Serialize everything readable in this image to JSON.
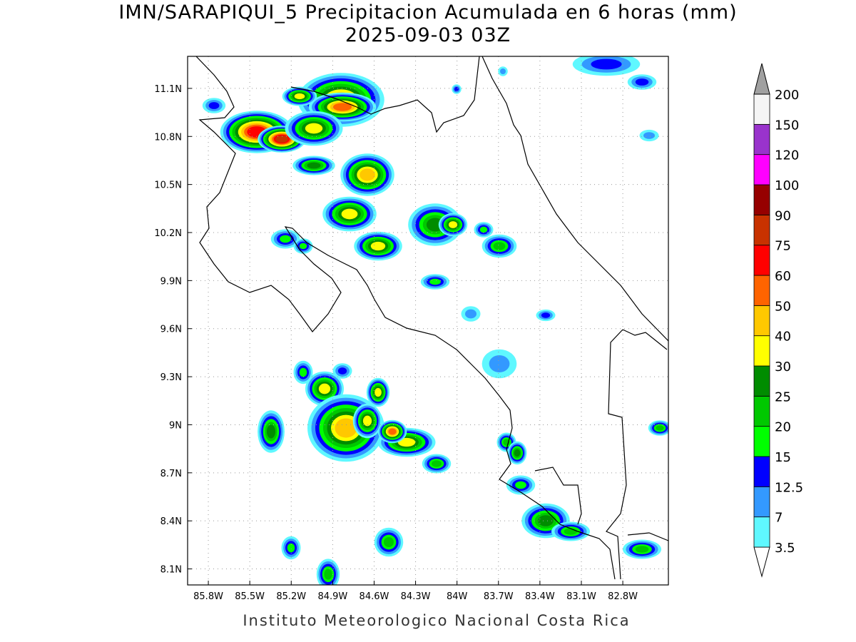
{
  "title": "IMN/SARAPIQUI_5 Precipitacion Acumulada en 6 horas (mm)",
  "subtitle": "2025-09-03 03Z",
  "footer": "Instituto Meteorologico Nacional Costa Rica",
  "map": {
    "lonlim": [
      -85.95,
      -82.47
    ],
    "latlim": [
      8.0,
      11.3
    ],
    "grid": true,
    "lonticks": [
      {
        "value": -85.8,
        "label": "85.8W"
      },
      {
        "value": -85.5,
        "label": "85.5W"
      },
      {
        "value": -85.2,
        "label": "85.2W"
      },
      {
        "value": -84.9,
        "label": "84.9W"
      },
      {
        "value": -84.6,
        "label": "84.6W"
      },
      {
        "value": -84.3,
        "label": "84.3W"
      },
      {
        "value": -84,
        "label": "84W"
      },
      {
        "value": -83.7,
        "label": "83.7W"
      },
      {
        "value": -83.4,
        "label": "83.4W"
      },
      {
        "value": -83.1,
        "label": "83.1W"
      },
      {
        "value": -82.8,
        "label": "82.8W"
      }
    ],
    "latticks": [
      {
        "value": 8.1,
        "label": "8.1N"
      },
      {
        "value": 8.4,
        "label": "8.4N"
      },
      {
        "value": 8.7,
        "label": "8.7N"
      },
      {
        "value": 9,
        "label": "9N"
      },
      {
        "value": 9.3,
        "label": "9.3N"
      },
      {
        "value": 9.6,
        "label": "9.6N"
      },
      {
        "value": 9.9,
        "label": "9.9N"
      },
      {
        "value": 10.2,
        "label": "10.2N"
      },
      {
        "value": 10.5,
        "label": "10.5N"
      },
      {
        "value": 10.8,
        "label": "10.8N"
      },
      {
        "value": 11.1,
        "label": "11.1N"
      }
    ],
    "colorbar": {
      "levels": [
        3.5,
        7,
        12.5,
        15,
        20,
        25,
        30,
        40,
        50,
        60,
        75,
        90,
        100,
        120,
        150,
        200
      ],
      "colors": [
        "#ffffff",
        "#5ff8ff",
        "#3399ff",
        "#0000ff",
        "#00ff00",
        "#00c800",
        "#008c00",
        "#ffff00",
        "#ffc800",
        "#ff6400",
        "#ff0000",
        "#c83200",
        "#960000",
        "#ff00ff",
        "#9933cc",
        "#f5f5f5",
        "#a0a0a0"
      ]
    }
  }
}
